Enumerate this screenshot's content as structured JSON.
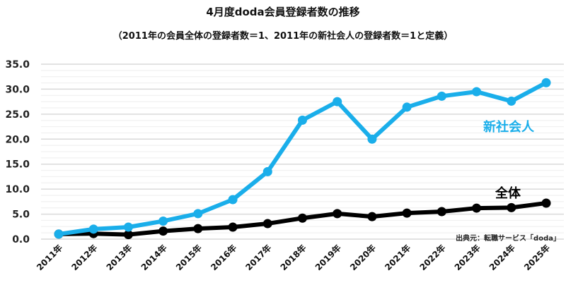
{
  "title": "4月度doda会員登録者数の推移",
  "subtitle": "（2011年の会員全体の登録者数＝1、2011年の新社会人の登録者数＝1と定義）",
  "source": "出典元：転職サービス「doda」",
  "labels": {
    "new_grads": "新社会人",
    "all": "全体"
  },
  "colors": {
    "new_grads": "#1aaeea",
    "all": "#000000",
    "grid_major": "#d9d9d9",
    "grid_minor": "#eeeeee"
  },
  "chart_data": {
    "type": "line",
    "title": "4月度doda会員登録者数の推移",
    "subtitle": "（2011年の会員全体の登録者数＝1、2011年の新社会人の登録者数＝1と定義）",
    "xlabel": "",
    "ylabel": "",
    "ylim": [
      0,
      35
    ],
    "yticks": [
      "0.0",
      "5.0",
      "10.0",
      "15.0",
      "20.0",
      "25.0",
      "30.0",
      "35.0"
    ],
    "grid": true,
    "legend_position": "inline labels (right side)",
    "categories": [
      "2011年",
      "2012年",
      "2013年",
      "2014年",
      "2015年",
      "2016年",
      "2017年",
      "2018年",
      "2019年",
      "2020年",
      "2021年",
      "2022年",
      "2023年",
      "2024年",
      "2025年"
    ],
    "series": [
      {
        "name": "新社会人",
        "color": "#1aaeea",
        "values": [
          1.0,
          2.0,
          2.4,
          3.6,
          5.1,
          7.9,
          13.5,
          23.8,
          27.5,
          20.0,
          26.4,
          28.6,
          29.5,
          27.6,
          31.3
        ]
      },
      {
        "name": "全体",
        "color": "#000000",
        "values": [
          1.0,
          1.1,
          0.9,
          1.6,
          2.1,
          2.4,
          3.1,
          4.2,
          5.1,
          4.5,
          5.2,
          5.5,
          6.2,
          6.3,
          7.2
        ]
      }
    ],
    "annotations": [
      "出典元：転職サービス「doda」"
    ]
  }
}
